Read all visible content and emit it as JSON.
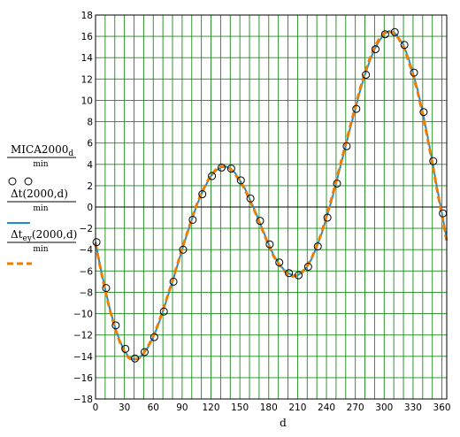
{
  "chart_data": {
    "type": "line",
    "xlabel": "d",
    "xlim": [
      0,
      365
    ],
    "ylim": [
      -18,
      18
    ],
    "xticks": [
      0,
      30,
      60,
      90,
      120,
      150,
      180,
      210,
      240,
      270,
      300,
      330,
      360
    ],
    "yticks": [
      -18,
      -16,
      -14,
      -12,
      -10,
      -8,
      -6,
      -4,
      -2,
      0,
      2,
      4,
      6,
      8,
      10,
      12,
      14,
      16,
      18
    ],
    "grid": true,
    "legend_placement": "left",
    "legend": [
      {
        "label": "MICA2000",
        "sub": "d",
        "denominator": "min",
        "style": "markers",
        "color": "#000000"
      },
      {
        "label": "Δt(2000,d)",
        "sub": "",
        "denominator": "min",
        "style": "solid",
        "color": "#1f8fc9"
      },
      {
        "label": "Δt",
        "sub": "ey",
        "args": "(2000,d)",
        "denominator": "min",
        "style": "dashed",
        "color": "#f07d00"
      }
    ],
    "series": [
      {
        "label": "MICA2000",
        "style": "markers",
        "x": [
          1,
          11,
          21,
          31,
          41,
          51,
          61,
          71,
          81,
          91,
          101,
          111,
          121,
          131,
          141,
          151,
          161,
          171,
          181,
          191,
          201,
          211,
          221,
          231,
          241,
          251,
          261,
          271,
          281,
          291,
          301,
          311,
          321,
          331,
          341,
          351,
          361
        ],
        "y": [
          -3.3,
          -7.6,
          -11.1,
          -13.3,
          -14.2,
          -13.6,
          -12.2,
          -9.8,
          -7.0,
          -4.0,
          -1.2,
          1.2,
          2.9,
          3.7,
          3.6,
          2.5,
          0.8,
          -1.3,
          -3.5,
          -5.2,
          -6.2,
          -6.4,
          -5.6,
          -3.7,
          -1.0,
          2.2,
          5.7,
          9.2,
          12.4,
          14.8,
          16.2,
          16.4,
          15.2,
          12.6,
          8.9,
          4.3,
          -0.6
        ]
      },
      {
        "label": "Δt(2000,d)",
        "style": "solid",
        "color": "#1f8fc9",
        "x": [
          0,
          5,
          10,
          15,
          20,
          25,
          30,
          35,
          40,
          45,
          50,
          55,
          60,
          65,
          70,
          75,
          80,
          85,
          90,
          95,
          100,
          105,
          110,
          115,
          120,
          125,
          130,
          135,
          140,
          145,
          150,
          155,
          160,
          165,
          170,
          175,
          180,
          185,
          190,
          195,
          200,
          205,
          210,
          215,
          220,
          225,
          230,
          235,
          240,
          245,
          250,
          255,
          260,
          265,
          270,
          275,
          280,
          285,
          290,
          295,
          300,
          305,
          310,
          315,
          320,
          325,
          330,
          335,
          340,
          345,
          350,
          355,
          360,
          365
        ],
        "y": [
          -3.3,
          -5.6,
          -7.7,
          -9.6,
          -11.2,
          -12.5,
          -13.5,
          -14.1,
          -14.3,
          -14.2,
          -13.7,
          -13.1,
          -12.2,
          -11.1,
          -9.8,
          -8.4,
          -7.0,
          -5.5,
          -4.0,
          -2.6,
          -1.2,
          0.1,
          1.2,
          2.1,
          2.9,
          3.4,
          3.7,
          3.8,
          3.6,
          3.2,
          2.5,
          1.8,
          0.8,
          -0.2,
          -1.3,
          -2.4,
          -3.5,
          -4.5,
          -5.2,
          -5.8,
          -6.2,
          -6.4,
          -6.4,
          -6.1,
          -5.6,
          -4.8,
          -3.7,
          -2.5,
          -1.0,
          0.5,
          2.2,
          4.0,
          5.7,
          7.5,
          9.2,
          10.9,
          12.4,
          13.7,
          14.8,
          15.6,
          16.2,
          16.5,
          16.4,
          15.9,
          15.2,
          14.0,
          12.6,
          10.9,
          8.9,
          6.7,
          4.3,
          1.8,
          -0.6,
          -3.0
        ]
      },
      {
        "label": "Δt_ey(2000,d)",
        "style": "dashed",
        "color": "#f07d00",
        "x": [
          0,
          5,
          10,
          15,
          20,
          25,
          30,
          35,
          40,
          45,
          50,
          55,
          60,
          65,
          70,
          75,
          80,
          85,
          90,
          95,
          100,
          105,
          110,
          115,
          120,
          125,
          130,
          135,
          140,
          145,
          150,
          155,
          160,
          165,
          170,
          175,
          180,
          185,
          190,
          195,
          200,
          205,
          210,
          215,
          220,
          225,
          230,
          235,
          240,
          245,
          250,
          255,
          260,
          265,
          270,
          275,
          280,
          285,
          290,
          295,
          300,
          305,
          310,
          315,
          320,
          325,
          330,
          335,
          340,
          345,
          350,
          355,
          360,
          365
        ],
        "y": [
          -3.4,
          -5.7,
          -7.8,
          -9.7,
          -11.3,
          -12.6,
          -13.6,
          -14.2,
          -14.3,
          -14.2,
          -13.7,
          -13.0,
          -12.1,
          -11.0,
          -9.7,
          -8.3,
          -6.9,
          -5.4,
          -3.9,
          -2.5,
          -1.1,
          0.2,
          1.3,
          2.2,
          3.0,
          3.5,
          3.8,
          3.8,
          3.6,
          3.1,
          2.4,
          1.7,
          0.7,
          -0.3,
          -1.4,
          -2.5,
          -3.6,
          -4.6,
          -5.3,
          -5.9,
          -6.3,
          -6.5,
          -6.4,
          -6.1,
          -5.5,
          -4.7,
          -3.6,
          -2.4,
          -0.9,
          0.7,
          2.4,
          4.2,
          5.9,
          7.7,
          9.4,
          11.1,
          12.6,
          13.9,
          15.0,
          15.8,
          16.3,
          16.5,
          16.3,
          15.8,
          15.0,
          13.8,
          12.4,
          10.7,
          8.7,
          6.5,
          4.1,
          1.6,
          -0.8,
          -3.2
        ]
      }
    ]
  }
}
